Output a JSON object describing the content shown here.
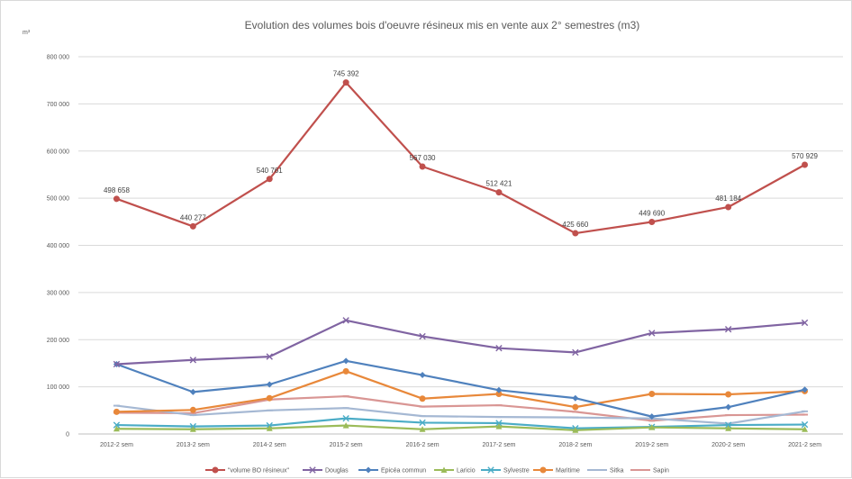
{
  "chart_data": {
    "type": "line",
    "title": "Evolution des volumes bois d'oeuvre résineux mis en vente aux 2° semestres (m3)",
    "unit_label": "m³",
    "categories": [
      "2012-2 sem",
      "2013-2 sem",
      "2014-2 sem",
      "2015-2 sem",
      "2016-2 sem",
      "2017-2 sem",
      "2018-2 sem",
      "2019-2 sem",
      "2020-2 sem",
      "2021-2 sem"
    ],
    "ylim": [
      0,
      800000
    ],
    "yticks": [
      0,
      100000,
      200000,
      300000,
      400000,
      500000,
      600000,
      700000,
      800000
    ],
    "ytick_labels": [
      "0",
      "100 000",
      "200 000",
      "300 000",
      "400 000",
      "500 000",
      "600 000",
      "700 000",
      "800 000"
    ],
    "grid": true,
    "legend_position": "bottom",
    "series": [
      {
        "name": "\"volume BO résineux\"",
        "color": "#c0504d",
        "marker": "circle",
        "values": [
          498658,
          440277,
          540761,
          745392,
          567030,
          512421,
          425660,
          449690,
          481184,
          570929
        ],
        "data_labels": [
          "498 658",
          "440 277",
          "540 761",
          "745 392",
          "567 030",
          "512 421",
          "425 660",
          "449 690",
          "481 184",
          "570 929"
        ]
      },
      {
        "name": "Douglas",
        "color": "#8064a2",
        "marker": "x",
        "values": [
          148000,
          157000,
          164000,
          241000,
          207000,
          182000,
          173000,
          214000,
          222000,
          236000
        ]
      },
      {
        "name": "Epicéa commun",
        "color": "#4f81bd",
        "marker": "diamond",
        "values": [
          148000,
          89000,
          105000,
          155000,
          125000,
          93000,
          76000,
          37000,
          57000,
          94000
        ]
      },
      {
        "name": "Laricio",
        "color": "#9bbb59",
        "marker": "triangle",
        "values": [
          11000,
          10000,
          12000,
          18000,
          10000,
          16000,
          8000,
          14000,
          12000,
          10000
        ]
      },
      {
        "name": "Sylvestre",
        "color": "#4bacc6",
        "marker": "x",
        "values": [
          19000,
          16000,
          18000,
          33000,
          24000,
          23000,
          12000,
          15000,
          19000,
          20000
        ]
      },
      {
        "name": "Maritime",
        "color": "#e8883a",
        "marker": "circle",
        "values": [
          47000,
          51000,
          76000,
          133000,
          75000,
          85000,
          57000,
          85000,
          84000,
          91000
        ]
      },
      {
        "name": "Sitka",
        "color": "#a5b8d3",
        "marker": "dash",
        "values": [
          60000,
          40000,
          50000,
          55000,
          38000,
          36000,
          35000,
          33000,
          22000,
          48000
        ]
      },
      {
        "name": "Sapin",
        "color": "#d99694",
        "marker": "dash",
        "values": [
          45000,
          44000,
          73000,
          80000,
          58000,
          61000,
          47000,
          28000,
          40000,
          41000
        ]
      }
    ]
  }
}
